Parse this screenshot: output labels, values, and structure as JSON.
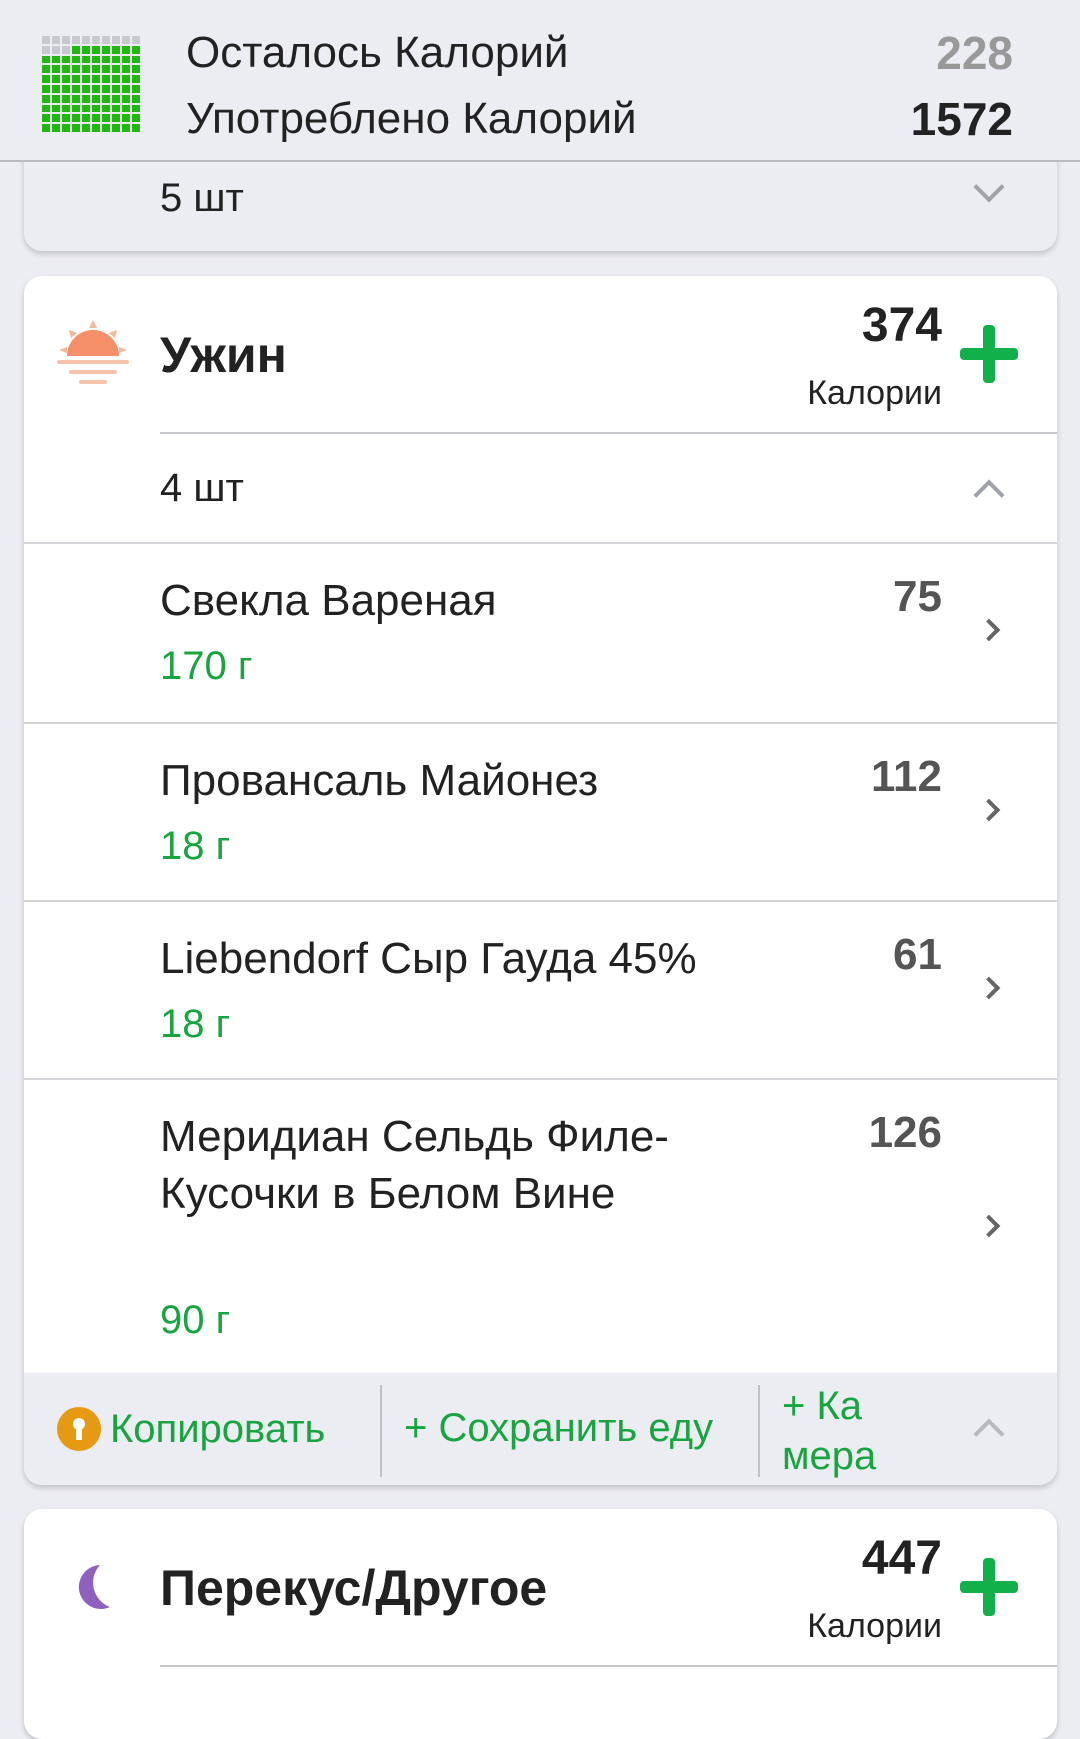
{
  "header": {
    "remaining_label": "Осталось Калорий",
    "remaining_value": "228",
    "consumed_label": "Употреблено Калорий",
    "consumed_value": "1572",
    "progress_fraction": 0.87,
    "grid_icon": "calorie-grid-icon"
  },
  "previous_meal": {
    "count": "5 шт"
  },
  "dinner": {
    "title": "Ужин",
    "icon": "sunset-icon",
    "calories": "374",
    "calories_label": "Калории",
    "count": "4 шт",
    "items": [
      {
        "name": "Свекла Вареная",
        "weight": "170 г",
        "calories": "75"
      },
      {
        "name": "Провансаль Майонез",
        "weight": "18 г",
        "calories": "112"
      },
      {
        "name": "Liebendorf Сыр Гауда 45%",
        "weight": "18 г",
        "calories": "61"
      },
      {
        "name": "Меридиан Сельдь Филе-Кусочки в Белом Вине",
        "weight": "90 г",
        "calories": "126"
      }
    ],
    "footer": {
      "copy": "Копировать",
      "save": "+ Сохранить еду",
      "camera": "+ Камера"
    }
  },
  "snack": {
    "title": "Перекус/Другое",
    "icon": "moon-icon",
    "calories": "447",
    "calories_label": "Калории"
  },
  "colors": {
    "accent_green": "#16a53f",
    "plus_green": "#12b04a",
    "grid_green": "#1fb80f",
    "sunset": "#f5906a",
    "moon": "#9060c0",
    "lock_orange": "#e59a12"
  }
}
